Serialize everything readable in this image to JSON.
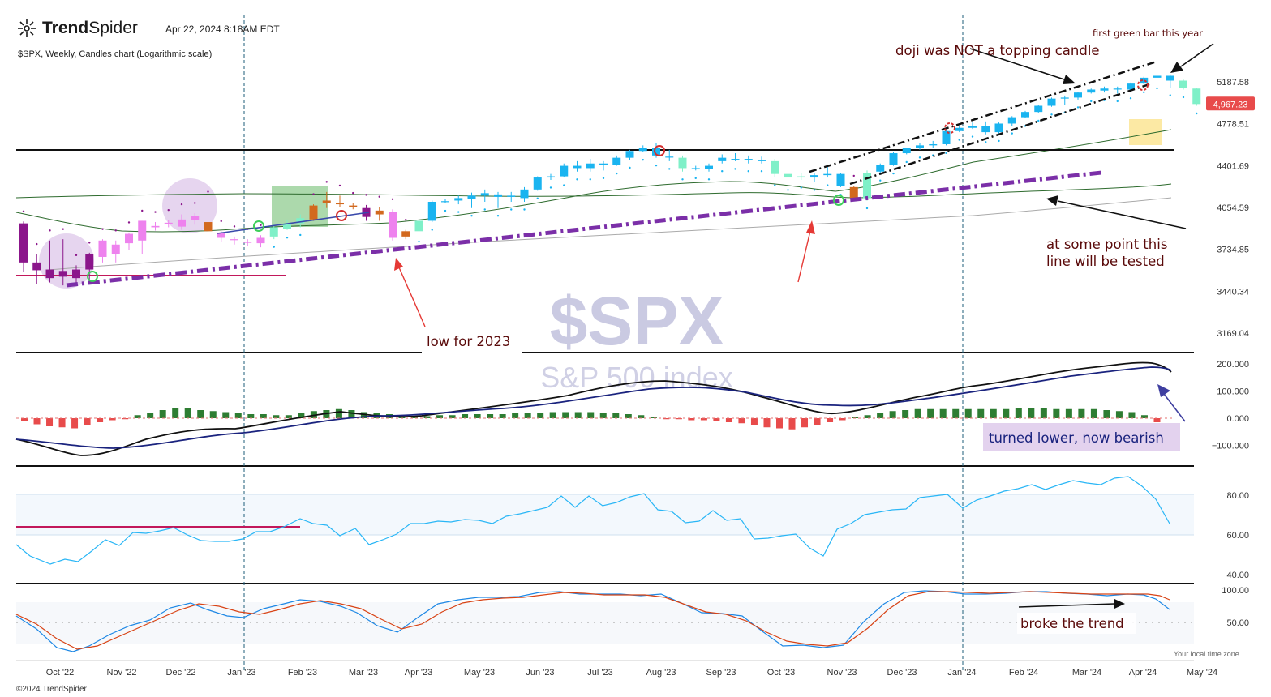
{
  "header": {
    "brand_bold": "Trend",
    "brand_thin": "Spider",
    "datetime": "Apr 22, 2024  8:18AM EDT",
    "chart_subtitle": "$SPX, Weekly, Candles chart (Logarithmic scale)",
    "footer": "©2024 TrendSpider",
    "timezone_note": "Your local time zone"
  },
  "watermark": {
    "symbol": "$SPX",
    "name": "S&P 500 index"
  },
  "price_badge": {
    "value": "4,967.23",
    "color": "#e84b4b"
  },
  "annotations": {
    "doji": "doji was NOT a topping candle",
    "first_green": "first green bar this year",
    "line_tested_1": "at some point this",
    "line_tested_2": "line will be tested",
    "low_2023": "low for 2023",
    "macd_note": "turned lower, now bearish",
    "stoch_note": "broke the trend"
  },
  "colors": {
    "up_cyan": "#1ab4f0",
    "up_mint": "#7ff0c8",
    "down_magenta": "#8b168b",
    "pink": "#ee82ee",
    "orange": "#d2691e",
    "trendline_purple": "#7b2fa8",
    "macd_line": "#111111",
    "signal_line": "#1a237e",
    "hist_pos": "#2e7d32",
    "hist_neg": "#e84b4b",
    "rsi_line": "#29b6f6",
    "stoch_k": "#1e88e5",
    "stoch_d": "#d84315"
  },
  "chart_data": [
    {
      "type": "candlestick",
      "title": "$SPX, Weekly, Candles chart (Logarithmic scale)",
      "scale": "log",
      "y_ticks": [
        "5187.58",
        "4778.51",
        "4401.69",
        "4054.59",
        "3734.85",
        "3440.34",
        "3169.04"
      ],
      "x_ticks": [
        "Oct '22",
        "Nov '22",
        "Dec '22",
        "Jan '23",
        "Feb '23",
        "Mar '23",
        "Apr '23",
        "May '23",
        "Jun '23",
        "Jul '23",
        "Aug '23",
        "Sep '23",
        "Oct '23",
        "Nov '23",
        "Dec '23",
        "Jan '24",
        "Feb '24",
        "Mar '24",
        "Apr '24",
        "May '24"
      ],
      "last_price": 4967.23,
      "horizontal_levels": [
        4555,
        3590
      ],
      "candles": [
        {
          "o": 3930,
          "h": 3945,
          "l": 3570,
          "c": 3640,
          "col": "magenta"
        },
        {
          "o": 3640,
          "h": 3700,
          "l": 3490,
          "c": 3585,
          "col": "magenta"
        },
        {
          "o": 3590,
          "h": 3800,
          "l": 3500,
          "c": 3530,
          "col": "magenta"
        },
        {
          "o": 3540,
          "h": 3810,
          "l": 3480,
          "c": 3580,
          "col": "magenta"
        },
        {
          "o": 3590,
          "h": 3620,
          "l": 3490,
          "c": 3530,
          "col": "magenta"
        },
        {
          "o": 3590,
          "h": 3710,
          "l": 3520,
          "c": 3700,
          "col": "magenta"
        },
        {
          "o": 3680,
          "h": 3810,
          "l": 3640,
          "c": 3800,
          "col": "pink"
        },
        {
          "o": 3770,
          "h": 3800,
          "l": 3640,
          "c": 3700,
          "col": "pink"
        },
        {
          "o": 3850,
          "h": 3860,
          "l": 3730,
          "c": 3780,
          "col": "pink"
        },
        {
          "o": 3800,
          "h": 3950,
          "l": 3700,
          "c": 3950,
          "col": "pink"
        },
        {
          "o": 3900,
          "h": 3940,
          "l": 3875,
          "c": 3910,
          "col": "pink"
        },
        {
          "o": 3930,
          "h": 3955,
          "l": 3900,
          "c": 3935,
          "col": "pink"
        },
        {
          "o": 3905,
          "h": 4000,
          "l": 3880,
          "c": 3960,
          "col": "pink"
        },
        {
          "o": 3990,
          "h": 4010,
          "l": 3920,
          "c": 3955,
          "col": "pink"
        },
        {
          "o": 3940,
          "h": 4100,
          "l": 3860,
          "c": 3870,
          "col": "orange"
        },
        {
          "o": 3860,
          "h": 3870,
          "l": 3790,
          "c": 3820,
          "col": "pink"
        },
        {
          "o": 3810,
          "h": 3830,
          "l": 3770,
          "c": 3810,
          "col": "pink"
        },
        {
          "o": 3785,
          "h": 3810,
          "l": 3760,
          "c": 3790,
          "col": "pink"
        },
        {
          "o": 3780,
          "h": 3840,
          "l": 3750,
          "c": 3820,
          "col": "pink"
        },
        {
          "o": 3830,
          "h": 3920,
          "l": 3810,
          "c": 3900,
          "col": "mint"
        },
        {
          "o": 3890,
          "h": 3960,
          "l": 3880,
          "c": 3930,
          "col": "mint"
        },
        {
          "o": 3930,
          "h": 4000,
          "l": 3900,
          "c": 3970,
          "col": "mint"
        },
        {
          "o": 3960,
          "h": 4080,
          "l": 3950,
          "c": 4070,
          "col": "orange"
        },
        {
          "o": 4090,
          "h": 4180,
          "l": 4050,
          "c": 4110,
          "col": "orange"
        },
        {
          "o": 4080,
          "h": 4150,
          "l": 4060,
          "c": 4090,
          "col": "orange"
        },
        {
          "o": 4070,
          "h": 4090,
          "l": 4040,
          "c": 4055,
          "col": "orange"
        },
        {
          "o": 4050,
          "h": 4075,
          "l": 3950,
          "c": 3980,
          "col": "magenta"
        },
        {
          "o": 4030,
          "h": 4060,
          "l": 3950,
          "c": 4000,
          "col": "orange"
        },
        {
          "o": 4020,
          "h": 4040,
          "l": 3800,
          "c": 3820,
          "col": "pink"
        },
        {
          "o": 3830,
          "h": 3880,
          "l": 3810,
          "c": 3870,
          "col": "orange"
        },
        {
          "o": 3870,
          "h": 3960,
          "l": 3850,
          "c": 3950,
          "col": "mint"
        },
        {
          "o": 3950,
          "h": 4110,
          "l": 3940,
          "c": 4100,
          "col": "cyan"
        },
        {
          "o": 4100,
          "h": 4120,
          "l": 4090,
          "c": 4105,
          "col": "cyan"
        },
        {
          "o": 4110,
          "h": 4150,
          "l": 4080,
          "c": 4130,
          "col": "cyan"
        },
        {
          "o": 4120,
          "h": 4175,
          "l": 4050,
          "c": 4150,
          "col": "cyan"
        },
        {
          "o": 4150,
          "h": 4200,
          "l": 4100,
          "c": 4170,
          "col": "cyan"
        },
        {
          "o": 4160,
          "h": 4180,
          "l": 4050,
          "c": 4140,
          "col": "cyan"
        },
        {
          "o": 4150,
          "h": 4180,
          "l": 4100,
          "c": 4140,
          "col": "cyan"
        },
        {
          "o": 4130,
          "h": 4220,
          "l": 4100,
          "c": 4200,
          "col": "cyan"
        },
        {
          "o": 4200,
          "h": 4310,
          "l": 4190,
          "c": 4300,
          "col": "cyan"
        },
        {
          "o": 4300,
          "h": 4330,
          "l": 4280,
          "c": 4310,
          "col": "cyan"
        },
        {
          "o": 4310,
          "h": 4420,
          "l": 4300,
          "c": 4400,
          "col": "cyan"
        },
        {
          "o": 4400,
          "h": 4440,
          "l": 4350,
          "c": 4380,
          "col": "cyan"
        },
        {
          "o": 4380,
          "h": 4460,
          "l": 4350,
          "c": 4420,
          "col": "cyan"
        },
        {
          "o": 4420,
          "h": 4440,
          "l": 4360,
          "c": 4410,
          "col": "cyan"
        },
        {
          "o": 4410,
          "h": 4490,
          "l": 4400,
          "c": 4470,
          "col": "cyan"
        },
        {
          "o": 4470,
          "h": 4540,
          "l": 4450,
          "c": 4530,
          "col": "cyan"
        },
        {
          "o": 4530,
          "h": 4580,
          "l": 4520,
          "c": 4560,
          "col": "cyan"
        },
        {
          "o": 4560,
          "h": 4600,
          "l": 4470,
          "c": 4490,
          "col": "cyan"
        },
        {
          "o": 4480,
          "h": 4540,
          "l": 4440,
          "c": 4480,
          "col": "cyan"
        },
        {
          "o": 4470,
          "h": 4490,
          "l": 4350,
          "c": 4380,
          "col": "mint"
        },
        {
          "o": 4380,
          "h": 4400,
          "l": 4360,
          "c": 4370,
          "col": "cyan"
        },
        {
          "o": 4370,
          "h": 4420,
          "l": 4350,
          "c": 4400,
          "col": "cyan"
        },
        {
          "o": 4440,
          "h": 4500,
          "l": 4420,
          "c": 4470,
          "col": "cyan"
        },
        {
          "o": 4460,
          "h": 4510,
          "l": 4440,
          "c": 4460,
          "col": "cyan"
        },
        {
          "o": 4460,
          "h": 4490,
          "l": 4420,
          "c": 4450,
          "col": "cyan"
        },
        {
          "o": 4450,
          "h": 4480,
          "l": 4420,
          "c": 4440,
          "col": "cyan"
        },
        {
          "o": 4440,
          "h": 4460,
          "l": 4300,
          "c": 4330,
          "col": "mint"
        },
        {
          "o": 4330,
          "h": 4360,
          "l": 4260,
          "c": 4300,
          "col": "mint"
        },
        {
          "o": 4300,
          "h": 4340,
          "l": 4280,
          "c": 4310,
          "col": "mint"
        },
        {
          "o": 4300,
          "h": 4340,
          "l": 4260,
          "c": 4320,
          "col": "cyan"
        },
        {
          "o": 4320,
          "h": 4400,
          "l": 4300,
          "c": 4330,
          "col": "cyan"
        },
        {
          "o": 4330,
          "h": 4340,
          "l": 4220,
          "c": 4230,
          "col": "cyan"
        },
        {
          "o": 4220,
          "h": 4230,
          "l": 4120,
          "c": 4130,
          "col": "orange"
        },
        {
          "o": 4130,
          "h": 4360,
          "l": 4110,
          "c": 4340,
          "col": "mint"
        },
        {
          "o": 4350,
          "h": 4420,
          "l": 4340,
          "c": 4410,
          "col": "cyan"
        },
        {
          "o": 4410,
          "h": 4520,
          "l": 4400,
          "c": 4510,
          "col": "cyan"
        },
        {
          "o": 4510,
          "h": 4560,
          "l": 4500,
          "c": 4555,
          "col": "cyan"
        },
        {
          "o": 4560,
          "h": 4600,
          "l": 4540,
          "c": 4580,
          "col": "cyan"
        },
        {
          "o": 4580,
          "h": 4620,
          "l": 4560,
          "c": 4590,
          "col": "cyan"
        },
        {
          "o": 4590,
          "h": 4720,
          "l": 4580,
          "c": 4710,
          "col": "cyan"
        },
        {
          "o": 4710,
          "h": 4760,
          "l": 4700,
          "c": 4740,
          "col": "cyan"
        },
        {
          "o": 4740,
          "h": 4790,
          "l": 4730,
          "c": 4760,
          "col": "cyan"
        },
        {
          "o": 4760,
          "h": 4800,
          "l": 4680,
          "c": 4700,
          "col": "cyan"
        },
        {
          "o": 4700,
          "h": 4790,
          "l": 4690,
          "c": 4780,
          "col": "cyan"
        },
        {
          "o": 4780,
          "h": 4850,
          "l": 4760,
          "c": 4840,
          "col": "cyan"
        },
        {
          "o": 4840,
          "h": 4900,
          "l": 4830,
          "c": 4890,
          "col": "cyan"
        },
        {
          "o": 4890,
          "h": 4960,
          "l": 4880,
          "c": 4950,
          "col": "cyan"
        },
        {
          "o": 4950,
          "h": 5030,
          "l": 4940,
          "c": 5020,
          "col": "cyan"
        },
        {
          "o": 5020,
          "h": 5050,
          "l": 4960,
          "c": 5030,
          "col": "cyan"
        },
        {
          "o": 5030,
          "h": 5090,
          "l": 5010,
          "c": 5080,
          "col": "cyan"
        },
        {
          "o": 5080,
          "h": 5120,
          "l": 5070,
          "c": 5110,
          "col": "cyan"
        },
        {
          "o": 5100,
          "h": 5140,
          "l": 5080,
          "c": 5120,
          "col": "cyan"
        },
        {
          "o": 5120,
          "h": 5140,
          "l": 5070,
          "c": 5118,
          "col": "cyan"
        },
        {
          "o": 5110,
          "h": 5180,
          "l": 5100,
          "c": 5170,
          "col": "cyan"
        },
        {
          "o": 5170,
          "h": 5240,
          "l": 5160,
          "c": 5230,
          "col": "cyan"
        },
        {
          "o": 5230,
          "h": 5260,
          "l": 5200,
          "c": 5250,
          "col": "cyan"
        },
        {
          "o": 5250,
          "h": 5265,
          "l": 5130,
          "c": 5200,
          "col": "cyan"
        },
        {
          "o": 5200,
          "h": 5210,
          "l": 5110,
          "c": 5130,
          "col": "mint"
        },
        {
          "o": 5120,
          "h": 5130,
          "l": 4950,
          "c": 4967,
          "col": "mint"
        }
      ]
    },
    {
      "type": "macd",
      "y_ticks": [
        "200.000",
        "100.000",
        "0.000",
        "−100.000"
      ]
    },
    {
      "type": "rsi",
      "y_ticks": [
        "80.00",
        "60.00",
        "40.00"
      ]
    },
    {
      "type": "stochastic",
      "y_ticks": [
        "100.00",
        "50.00"
      ]
    }
  ]
}
